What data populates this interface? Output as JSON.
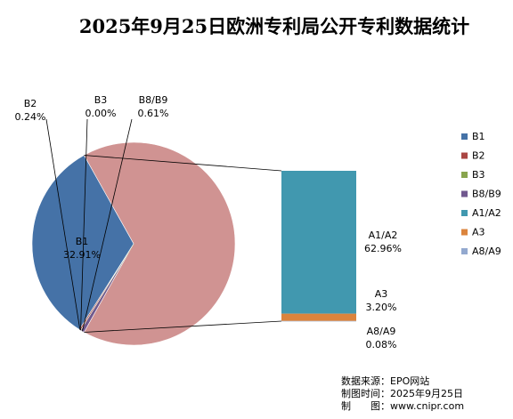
{
  "chart_data": {
    "type": "bar-of-pie",
    "title": "2025年9月25日欧洲专利局公开专利数据统计",
    "slices": [
      {
        "name": "B1",
        "value": 32.91,
        "color": "#4572a7",
        "label": "B1",
        "pct": "32.91%"
      },
      {
        "name": "B2",
        "value": 0.24,
        "color": "#aa4643",
        "label": "B2",
        "pct": "0.24%"
      },
      {
        "name": "B3",
        "value": 0.0,
        "color": "#89a54e",
        "label": "B3",
        "pct": "0.00%"
      },
      {
        "name": "B8/B9",
        "value": 0.61,
        "color": "#71588f",
        "label": "B8/B9",
        "pct": "0.61%"
      }
    ],
    "other": {
      "value": 66.24,
      "color": "#d09392"
    },
    "bar": [
      {
        "name": "A1/A2",
        "value": 62.96,
        "color": "#4198af",
        "label": "A1/A2",
        "pct": "62.96%"
      },
      {
        "name": "A3",
        "value": 3.2,
        "color": "#db843d",
        "label": "A3",
        "pct": "3.20%"
      },
      {
        "name": "A8/A9",
        "value": 0.08,
        "color": "#93a9cf",
        "label": "A8/A9",
        "pct": "0.08%"
      }
    ],
    "legend": {
      "position": "right",
      "items": [
        {
          "name": "B1",
          "color": "#4572a7"
        },
        {
          "name": "B2",
          "color": "#aa4643"
        },
        {
          "name": "B3",
          "color": "#89a54e"
        },
        {
          "name": "B8/B9",
          "color": "#71588f"
        },
        {
          "name": "A1/A2",
          "color": "#4198af"
        },
        {
          "name": "A3",
          "color": "#db843d"
        },
        {
          "name": "A8/A9",
          "color": "#93a9cf"
        }
      ]
    }
  },
  "source": {
    "line1": "数据来源：EPO网站",
    "line2": "制图时间：2025年9月25日",
    "line3": "制　　图：www.cnipr.com"
  }
}
